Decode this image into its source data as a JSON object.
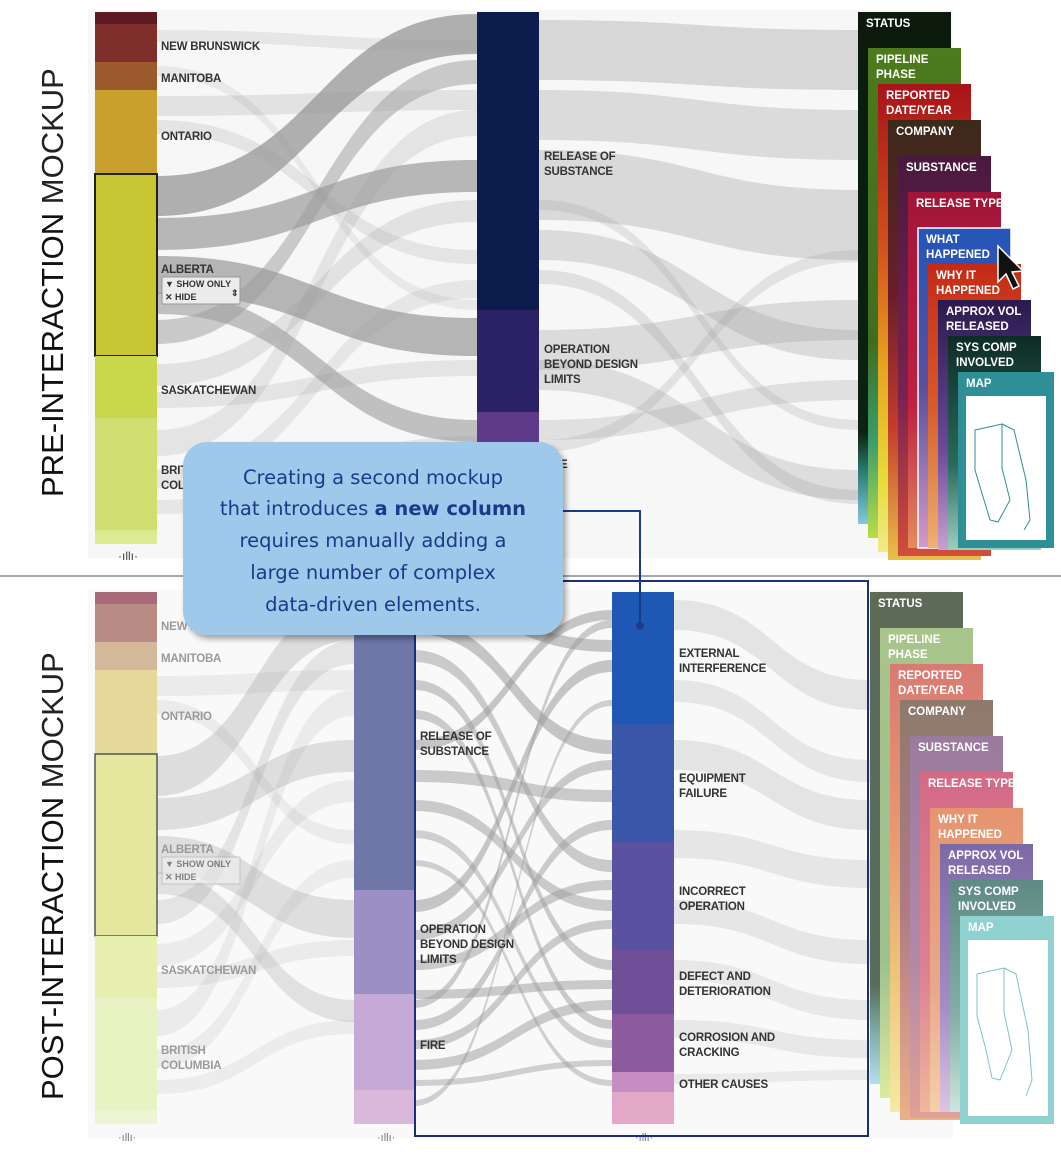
{
  "side_labels": {
    "top_bold": "PRE-INTERACTION",
    "top_thin": " MOCKUP",
    "bottom_bold": "POST-INTERACTION",
    "bottom_thin": " MOCKUP"
  },
  "provinces": [
    "NEW BRUNSWICK",
    "MANITOBA",
    "ONTARIO",
    "ALBERTA",
    "SASKATCHEWAN",
    "BRITISH COLUMBIA"
  ],
  "top_province_labels": {
    "nb": "NEW BRUNSWICK",
    "mb": "MANITOBA",
    "on": "ONTARIO",
    "ab": "ALBERTA",
    "sk": "SASKATCHEWAN",
    "bc1": "BRITISH",
    "bc2": "COLUMBIA"
  },
  "bottom_province_labels": {
    "nb": "NEW B",
    "mb": "MANITOBA",
    "on": "ONTARIO",
    "ab": "ALBERTA",
    "sk": "SASKATCHEWAN",
    "bc1": "BRITISH",
    "bc2": "COLUMBIA"
  },
  "filter_control": {
    "show_only": "SHOW ONLY",
    "hide": "HIDE"
  },
  "top_categories": {
    "release1": "RELEASE OF",
    "release2": "SUBSTANCE",
    "op1": "OPERATION",
    "op2": "BEYOND DESIGN",
    "op3": "LIMITS",
    "fire_partial": "E"
  },
  "bottom_categories": {
    "release1": "RELEASE OF",
    "release2": "SUBSTANCE",
    "op1": "OPERATION",
    "op2": "BEYOND DESIGN",
    "op3": "LIMITS",
    "fire": "FIRE"
  },
  "causes": {
    "ext1": "EXTERNAL",
    "ext2": "INTERFERENCE",
    "eq1": "EQUIPMENT",
    "eq2": "FAILURE",
    "inc1": "INCORRECT",
    "inc2": "OPERATION",
    "def1": "DEFECT AND",
    "def2": "DETERIORATION",
    "cor1": "CORROSION AND",
    "cor2": "CRACKING",
    "oth": "OTHER CAUSES"
  },
  "top_tabs": {
    "status": "STATUS",
    "pipeline1": "PIPELINE",
    "pipeline2": "PHASE",
    "reported1": "REPORTED",
    "reported2": "DATE/YEAR",
    "company": "COMPANY",
    "substance": "SUBSTANCE",
    "release_type": "RELEASE TYPE",
    "what1": "WHAT",
    "what2": "HAPPENED",
    "why1": "WHY IT",
    "why2": "HAPPENED",
    "vol1": "APPROX VOL",
    "vol2": "RELEASED",
    "sys1": "SYS COMP",
    "sys2": "INVOLVED",
    "map": "MAP"
  },
  "bottom_tabs": {
    "status": "STATUS",
    "pipeline1": "PIPELINE",
    "pipeline2": "PHASE",
    "reported1": "REPORTED",
    "reported2": "DATE/YEAR",
    "company": "COMPANY",
    "substance": "SUBSTANCE",
    "release_type": "RELEASE TYPE",
    "why1": "WHY IT",
    "why2": "HAPPENED",
    "vol1": "APPROX VOL",
    "vol2": "RELEASED",
    "sys1": "SYS COMP",
    "sys2": "INVOLVED",
    "map": "MAP"
  },
  "callout": {
    "line1": "Creating a second mockup",
    "line2_pre": "that introduces ",
    "line2_bold": "a new column",
    "line3": "requires manually adding a",
    "line4": "large number of complex",
    "line5": "data-driven elements."
  },
  "colors": {
    "top_provinces": [
      "#5c1a22",
      "#7e2f2c",
      "#9a5a2c",
      "#c7a02e",
      "#c9c634",
      "#c9d84a",
      "#cfe070"
    ],
    "bottom_provinces": [
      "#a86a78",
      "#b88c85",
      "#d4b89a",
      "#e6d79a",
      "#e5e79e",
      "#e6eeb0",
      "#e9f2c2"
    ],
    "top_column2": [
      "#0c1d4d",
      "#2a2167",
      "#5f3a8a"
    ],
    "bottom_column2": [
      "#6e77a8",
      "#9c8fc4",
      "#c5a9d6",
      "#d9b8dc"
    ],
    "causes": [
      "#1f57b5",
      "#3a56a8",
      "#5a52a0",
      "#6e4f98",
      "#8c5a9e",
      "#c58dc2",
      "#e4a9c9"
    ],
    "flow": "#9b9b9b",
    "callout_fill": "#9fc9ea",
    "callout_border": "#1b3a8a",
    "highlight_frame": "#1b2f7a"
  }
}
